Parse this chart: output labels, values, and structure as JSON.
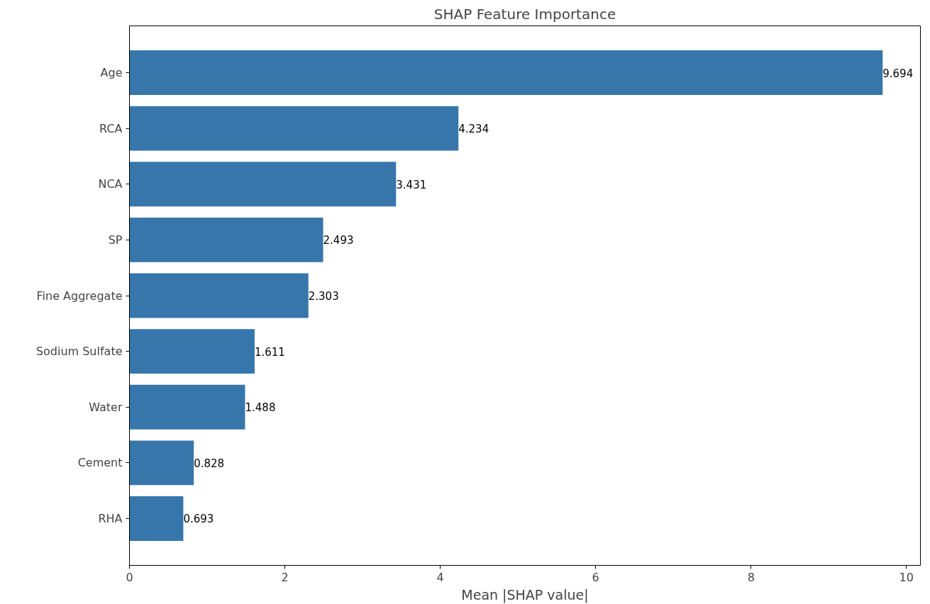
{
  "chart_data": {
    "type": "bar",
    "orientation": "horizontal",
    "title": "SHAP Feature Importance",
    "xlabel": "Mean |SHAP value|",
    "categories": [
      "Age",
      "RCA",
      "NCA",
      "SP",
      "Fine Aggregate",
      "Sodium Sulfate",
      "Water",
      "Cement",
      "RHA"
    ],
    "values": [
      9.694,
      4.234,
      3.431,
      2.493,
      2.303,
      1.611,
      1.488,
      0.828,
      0.693
    ],
    "color": "#3776ab",
    "data_labels": true,
    "grid": false,
    "xlim": [
      0,
      10.18
    ],
    "xticks": [
      0,
      2,
      4,
      6,
      8,
      10
    ]
  }
}
